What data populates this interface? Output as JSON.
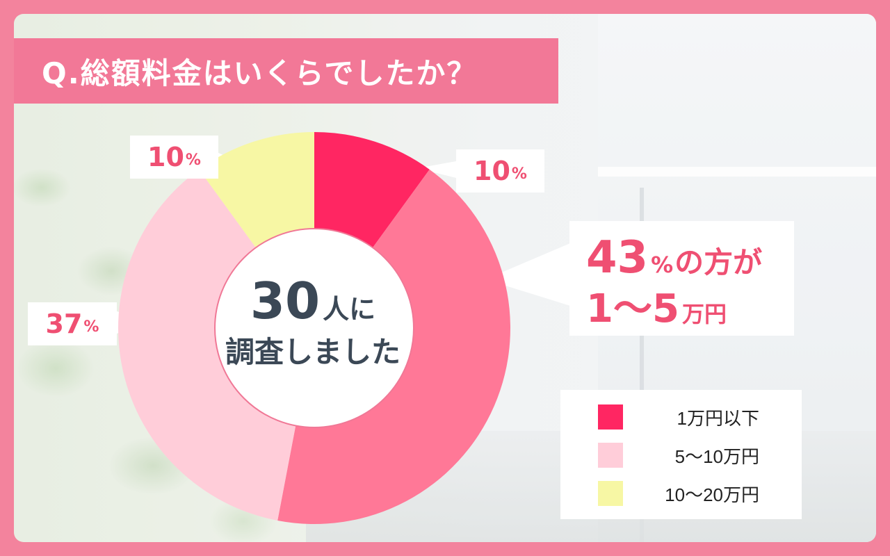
{
  "title": "Q.総額料金はいくらでしたか？",
  "center": {
    "number": "30",
    "suffix": "人に",
    "line2": "調査しました"
  },
  "callout": {
    "big": "43",
    "pct": "%",
    "mid": "の方が",
    "range": "1〜5",
    "unit": "万円"
  },
  "labels": {
    "upper_right": {
      "num": "10",
      "unit": "%"
    },
    "upper_left": {
      "num": "10",
      "unit": "%"
    },
    "left": {
      "num": "37",
      "unit": "%"
    }
  },
  "chart_data": {
    "type": "pie",
    "donut": true,
    "unit": "%",
    "categories": [
      "1万円以下",
      "1〜5万円",
      "5〜10万円",
      "10〜20万円"
    ],
    "values": [
      10,
      43,
      37,
      10
    ],
    "colors": [
      "#ff2662",
      "#ff7897",
      "#ffcdd9",
      "#f7f7a4"
    ],
    "start": "12 o'clock, clockwise"
  },
  "legend": {
    "items": [
      {
        "label": "1万円以下",
        "color": "#ff2662"
      },
      {
        "label": "5〜10万円",
        "color": "#ffcdd9"
      },
      {
        "label": "10〜20万円",
        "color": "#f7f7a4"
      }
    ]
  }
}
